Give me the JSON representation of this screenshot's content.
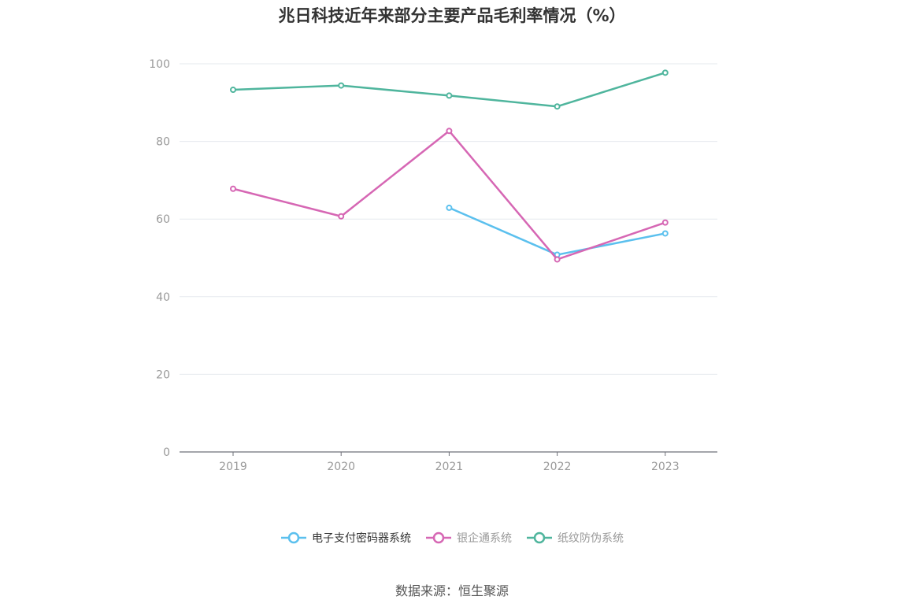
{
  "title": "兆日科技近年来部分主要产品毛利率情况（%）",
  "source": "数据来源：恒生聚源",
  "chart_data": {
    "type": "line",
    "x": [
      "2019",
      "2020",
      "2021",
      "2022",
      "2023"
    ],
    "ylim": [
      0,
      100
    ],
    "y_ticks": [
      "0",
      "20",
      "40",
      "60",
      "80",
      "100"
    ],
    "grid": true,
    "legend_position": "bottom",
    "series": [
      {
        "name": "电子支付密码器系统",
        "color": "#5bc0ee",
        "values": [
          null,
          null,
          62.9,
          50.8,
          56.3
        ]
      },
      {
        "name": "银企通系统",
        "color": "#d667b4",
        "values": [
          67.8,
          60.7,
          82.7,
          49.6,
          59.1
        ]
      },
      {
        "name": "纸纹防伪系统",
        "color": "#4fb59d",
        "values": [
          93.3,
          94.4,
          91.8,
          89.0,
          97.7
        ]
      }
    ]
  }
}
